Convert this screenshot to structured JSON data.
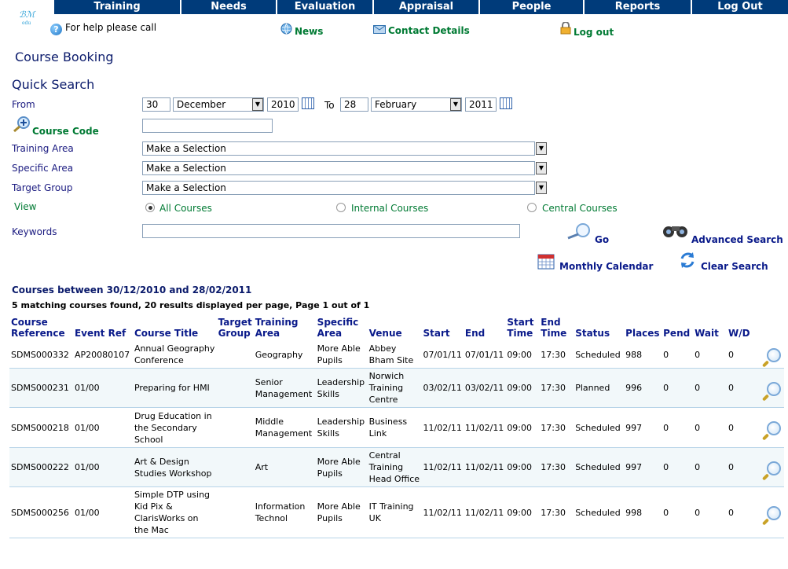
{
  "nav": {
    "tabs": [
      "Training",
      "Needs",
      "Evaluation",
      "Appraisal",
      "People",
      "Reports",
      "Log Out"
    ]
  },
  "header": {
    "help_text": "For help please call",
    "links": {
      "news": "News",
      "contact": "Contact Details",
      "logout": "Log out"
    }
  },
  "page_title": "Course Booking",
  "quick_search": {
    "title": "Quick Search",
    "from_label": "From",
    "to_label": "To",
    "from": {
      "day": "30",
      "month": "December",
      "year": "2010"
    },
    "to": {
      "day": "28",
      "month": "February",
      "year": "2011"
    },
    "course_code_label": "Course Code",
    "course_code_value": "",
    "training_area_label": "Training Area",
    "training_area_value": "Make a Selection",
    "specific_area_label": "Specific Area",
    "specific_area_value": "Make a Selection",
    "target_group_label": "Target Group",
    "target_group_value": "Make a Selection",
    "view_label": "View",
    "view_options": [
      "All Courses",
      "Internal Courses",
      "Central Courses"
    ],
    "view_selected": "All Courses",
    "keywords_label": "Keywords",
    "keywords_value": "",
    "go_label": "Go",
    "advanced_label": "Advanced Search",
    "calendar_label": "Monthly Calendar",
    "clear_label": "Clear Search"
  },
  "results": {
    "heading": "Courses between 30/12/2010 and 28/02/2011",
    "info": "5 matching courses found, 20 results displayed per page, Page  1 out of  1",
    "columns": [
      "Course Reference",
      "Event Ref",
      "Course Title",
      "Target Group",
      "Training Area",
      "Specific Area",
      "Venue",
      "Start",
      "End",
      "Start Time",
      "End Time",
      "Status",
      "Places",
      "Pend",
      "Wait",
      "W/D"
    ],
    "rows": [
      [
        "SDMS000332",
        "AP20080107",
        "Annual Geography Conference",
        "",
        "Geography",
        "More Able Pupils",
        "Abbey Bham Site",
        "07/01/11",
        "07/01/11",
        "09:00",
        "17:30",
        "Scheduled",
        "988",
        "0",
        "0",
        "0"
      ],
      [
        "SDMS000231",
        "01/00",
        "Preparing for HMI",
        "",
        "Senior Management",
        "Leadership Skills",
        "Norwich Training Centre",
        "03/02/11",
        "03/02/11",
        "09:00",
        "17:30",
        "Planned",
        "996",
        "0",
        "0",
        "0"
      ],
      [
        "SDMS000218",
        "01/00",
        "Drug Education in the Secondary School",
        "",
        "Middle Management",
        "Leadership Skills",
        "Business Link",
        "11/02/11",
        "11/02/11",
        "09:00",
        "17:30",
        "Scheduled",
        "997",
        "0",
        "0",
        "0"
      ],
      [
        "SDMS000222",
        "01/00",
        "Art & Design Studies Workshop",
        "",
        "Art",
        "More Able Pupils",
        "Central Training Head Office",
        "11/02/11",
        "11/02/11",
        "09:00",
        "17:30",
        "Scheduled",
        "997",
        "0",
        "0",
        "0"
      ],
      [
        "SDMS000256",
        "01/00",
        "Simple DTP using Kid Pix & ClarisWorks on the Mac",
        "",
        "Information Technol",
        "More Able Pupils",
        "IT Training UK",
        "11/02/11",
        "11/02/11",
        "09:00",
        "17:30",
        "Scheduled",
        "998",
        "0",
        "0",
        "0"
      ]
    ]
  }
}
